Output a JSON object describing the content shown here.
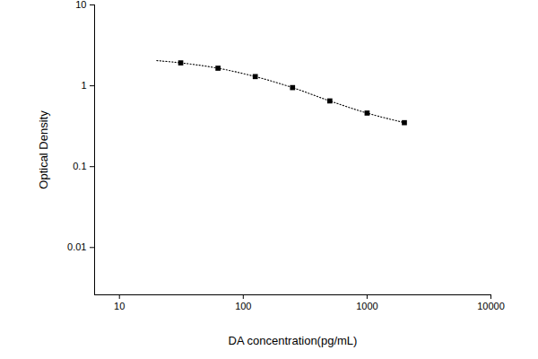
{
  "chart_data": {
    "type": "scatter",
    "x_label": "DA concentration(pg/mL)",
    "y_label": "Optical Density",
    "log": true,
    "grid": false,
    "xlim": [
      6.3,
      10000
    ],
    "ylim": [
      0.0026,
      10
    ],
    "xticks": [
      10,
      100,
      1000,
      10000
    ],
    "yticks": [
      0.01,
      0.1,
      1,
      10
    ],
    "series": [
      {
        "type": "scatter",
        "marker": "square",
        "color": "#000000",
        "x": [
          31.25,
          62.5,
          125,
          250,
          500,
          1000,
          2000
        ],
        "values": [
          1.92,
          1.65,
          1.3,
          0.95,
          0.65,
          0.46,
          0.35
        ]
      },
      {
        "type": "line",
        "line_style": "dotted",
        "color": "#000000",
        "x": [
          20,
          31.25,
          62.5,
          125,
          250,
          500,
          1000,
          2000
        ],
        "values": [
          2.05,
          1.92,
          1.65,
          1.3,
          0.95,
          0.65,
          0.46,
          0.35
        ]
      }
    ]
  }
}
